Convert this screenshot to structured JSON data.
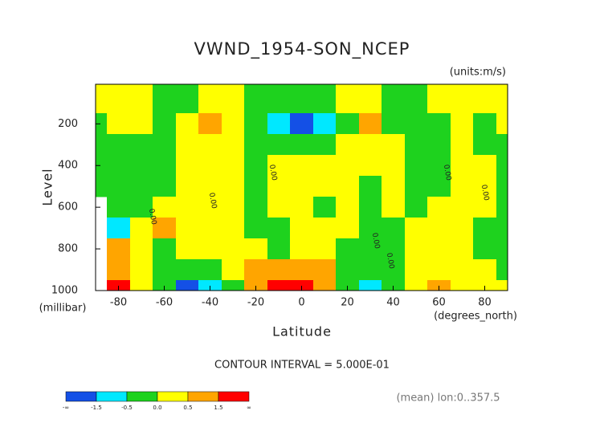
{
  "chart_data": {
    "type": "contour",
    "title": "VWND_1954-SON_NCEP",
    "subtitle": "(units:m/s)",
    "y_label": "Level",
    "y_unit": "(millibar)",
    "x_label": "Latitude",
    "x_unit": "(degrees_north)",
    "footnote": "CONTOUR INTERVAL = 5.000E-01",
    "footnote_right": "(mean) lon:0..357.5",
    "contour_label": "0.00",
    "x": [
      -90,
      -80,
      -70,
      -60,
      -50,
      -40,
      -30,
      -20,
      -10,
      0,
      10,
      20,
      30,
      40,
      50,
      60,
      70,
      80,
      90
    ],
    "y": [
      100,
      200,
      300,
      400,
      500,
      600,
      700,
      800,
      900,
      1000
    ],
    "z": [
      [
        0.2,
        0.2,
        0.2,
        -0.2,
        -0.3,
        0.2,
        0.2,
        -0.2,
        -0.3,
        -0.3,
        -0.2,
        0.2,
        0.2,
        -0.2,
        -0.2,
        0.2,
        0.2,
        0.3,
        0.2
      ],
      [
        -0.2,
        0.2,
        0.2,
        -0.2,
        0.2,
        0.6,
        0.2,
        -0.2,
        -0.8,
        -1.7,
        -0.8,
        -0.2,
        0.7,
        -0.2,
        -0.2,
        -0.2,
        0.2,
        -0.2,
        0.2
      ],
      [
        -0.2,
        -0.2,
        -0.2,
        -0.2,
        0.2,
        0.2,
        0.2,
        -0.2,
        -0.2,
        -0.3,
        -0.2,
        0.2,
        0.2,
        0.2,
        -0.2,
        -0.2,
        0.2,
        -0.2,
        -0.2
      ],
      [
        -0.2,
        -0.2,
        -0.2,
        -0.2,
        0.2,
        0.2,
        0.2,
        -0.2,
        0.2,
        0.2,
        0.2,
        0.2,
        0.2,
        0.2,
        -0.2,
        -0.2,
        0.2,
        0.2,
        -0.2
      ],
      [
        -0.2,
        -0.2,
        -0.2,
        -0.2,
        0.2,
        0.2,
        0.2,
        -0.2,
        0.2,
        0.2,
        0.2,
        0.2,
        -0.2,
        0.2,
        -0.2,
        -0.2,
        0.2,
        0.2,
        -0.2
      ],
      [
        null,
        -0.2,
        -0.2,
        0.2,
        0.2,
        0.2,
        0.2,
        -0.2,
        0.2,
        0.2,
        -0.2,
        0.2,
        -0.2,
        0.2,
        -0.2,
        0.2,
        0.2,
        0.2,
        -0.2
      ],
      [
        null,
        -0.6,
        0.2,
        0.6,
        0.2,
        0.2,
        0.2,
        -0.2,
        -0.2,
        0.2,
        0.2,
        0.2,
        -0.2,
        -0.2,
        0.2,
        0.2,
        0.2,
        -0.2,
        -0.2
      ],
      [
        null,
        0.6,
        0.2,
        -0.2,
        0.2,
        0.2,
        0.2,
        0.2,
        -0.2,
        0.2,
        0.2,
        -0.2,
        -0.2,
        -0.2,
        0.2,
        0.2,
        0.2,
        -0.2,
        -0.2
      ],
      [
        null,
        1.2,
        0.2,
        -0.2,
        -0.3,
        -0.3,
        0.2,
        0.6,
        0.7,
        0.9,
        0.6,
        -0.2,
        -0.4,
        -0.2,
        0.2,
        0.3,
        0.2,
        0.2,
        -0.2
      ],
      [
        null,
        1.7,
        0.2,
        -0.3,
        -1.6,
        -0.8,
        -0.2,
        0.7,
        1.6,
        1.7,
        0.6,
        -0.2,
        -0.8,
        -0.2,
        0.2,
        0.6,
        0.2,
        0.2,
        0.2
      ]
    ],
    "xlim": [
      -90,
      90
    ],
    "ylim": [
      10,
      1000
    ],
    "y_inverted": true,
    "xticks": [
      -80,
      -60,
      -40,
      -20,
      0,
      20,
      40,
      60,
      80
    ],
    "yticks": [
      200,
      400,
      600,
      800,
      1000
    ],
    "levels": [
      -1.5,
      -0.5,
      0.0,
      0.5,
      1.5
    ],
    "level_labels": [
      "-1.5",
      "-0.5",
      "0.0",
      "0.5",
      "1.5"
    ],
    "colorbar_ends": [
      "-∞",
      "∞"
    ],
    "colors": [
      "#1450e6",
      "#00e8ff",
      "#1ed21e",
      "#ffff00",
      "#ffa500",
      "#ff0000"
    ]
  }
}
